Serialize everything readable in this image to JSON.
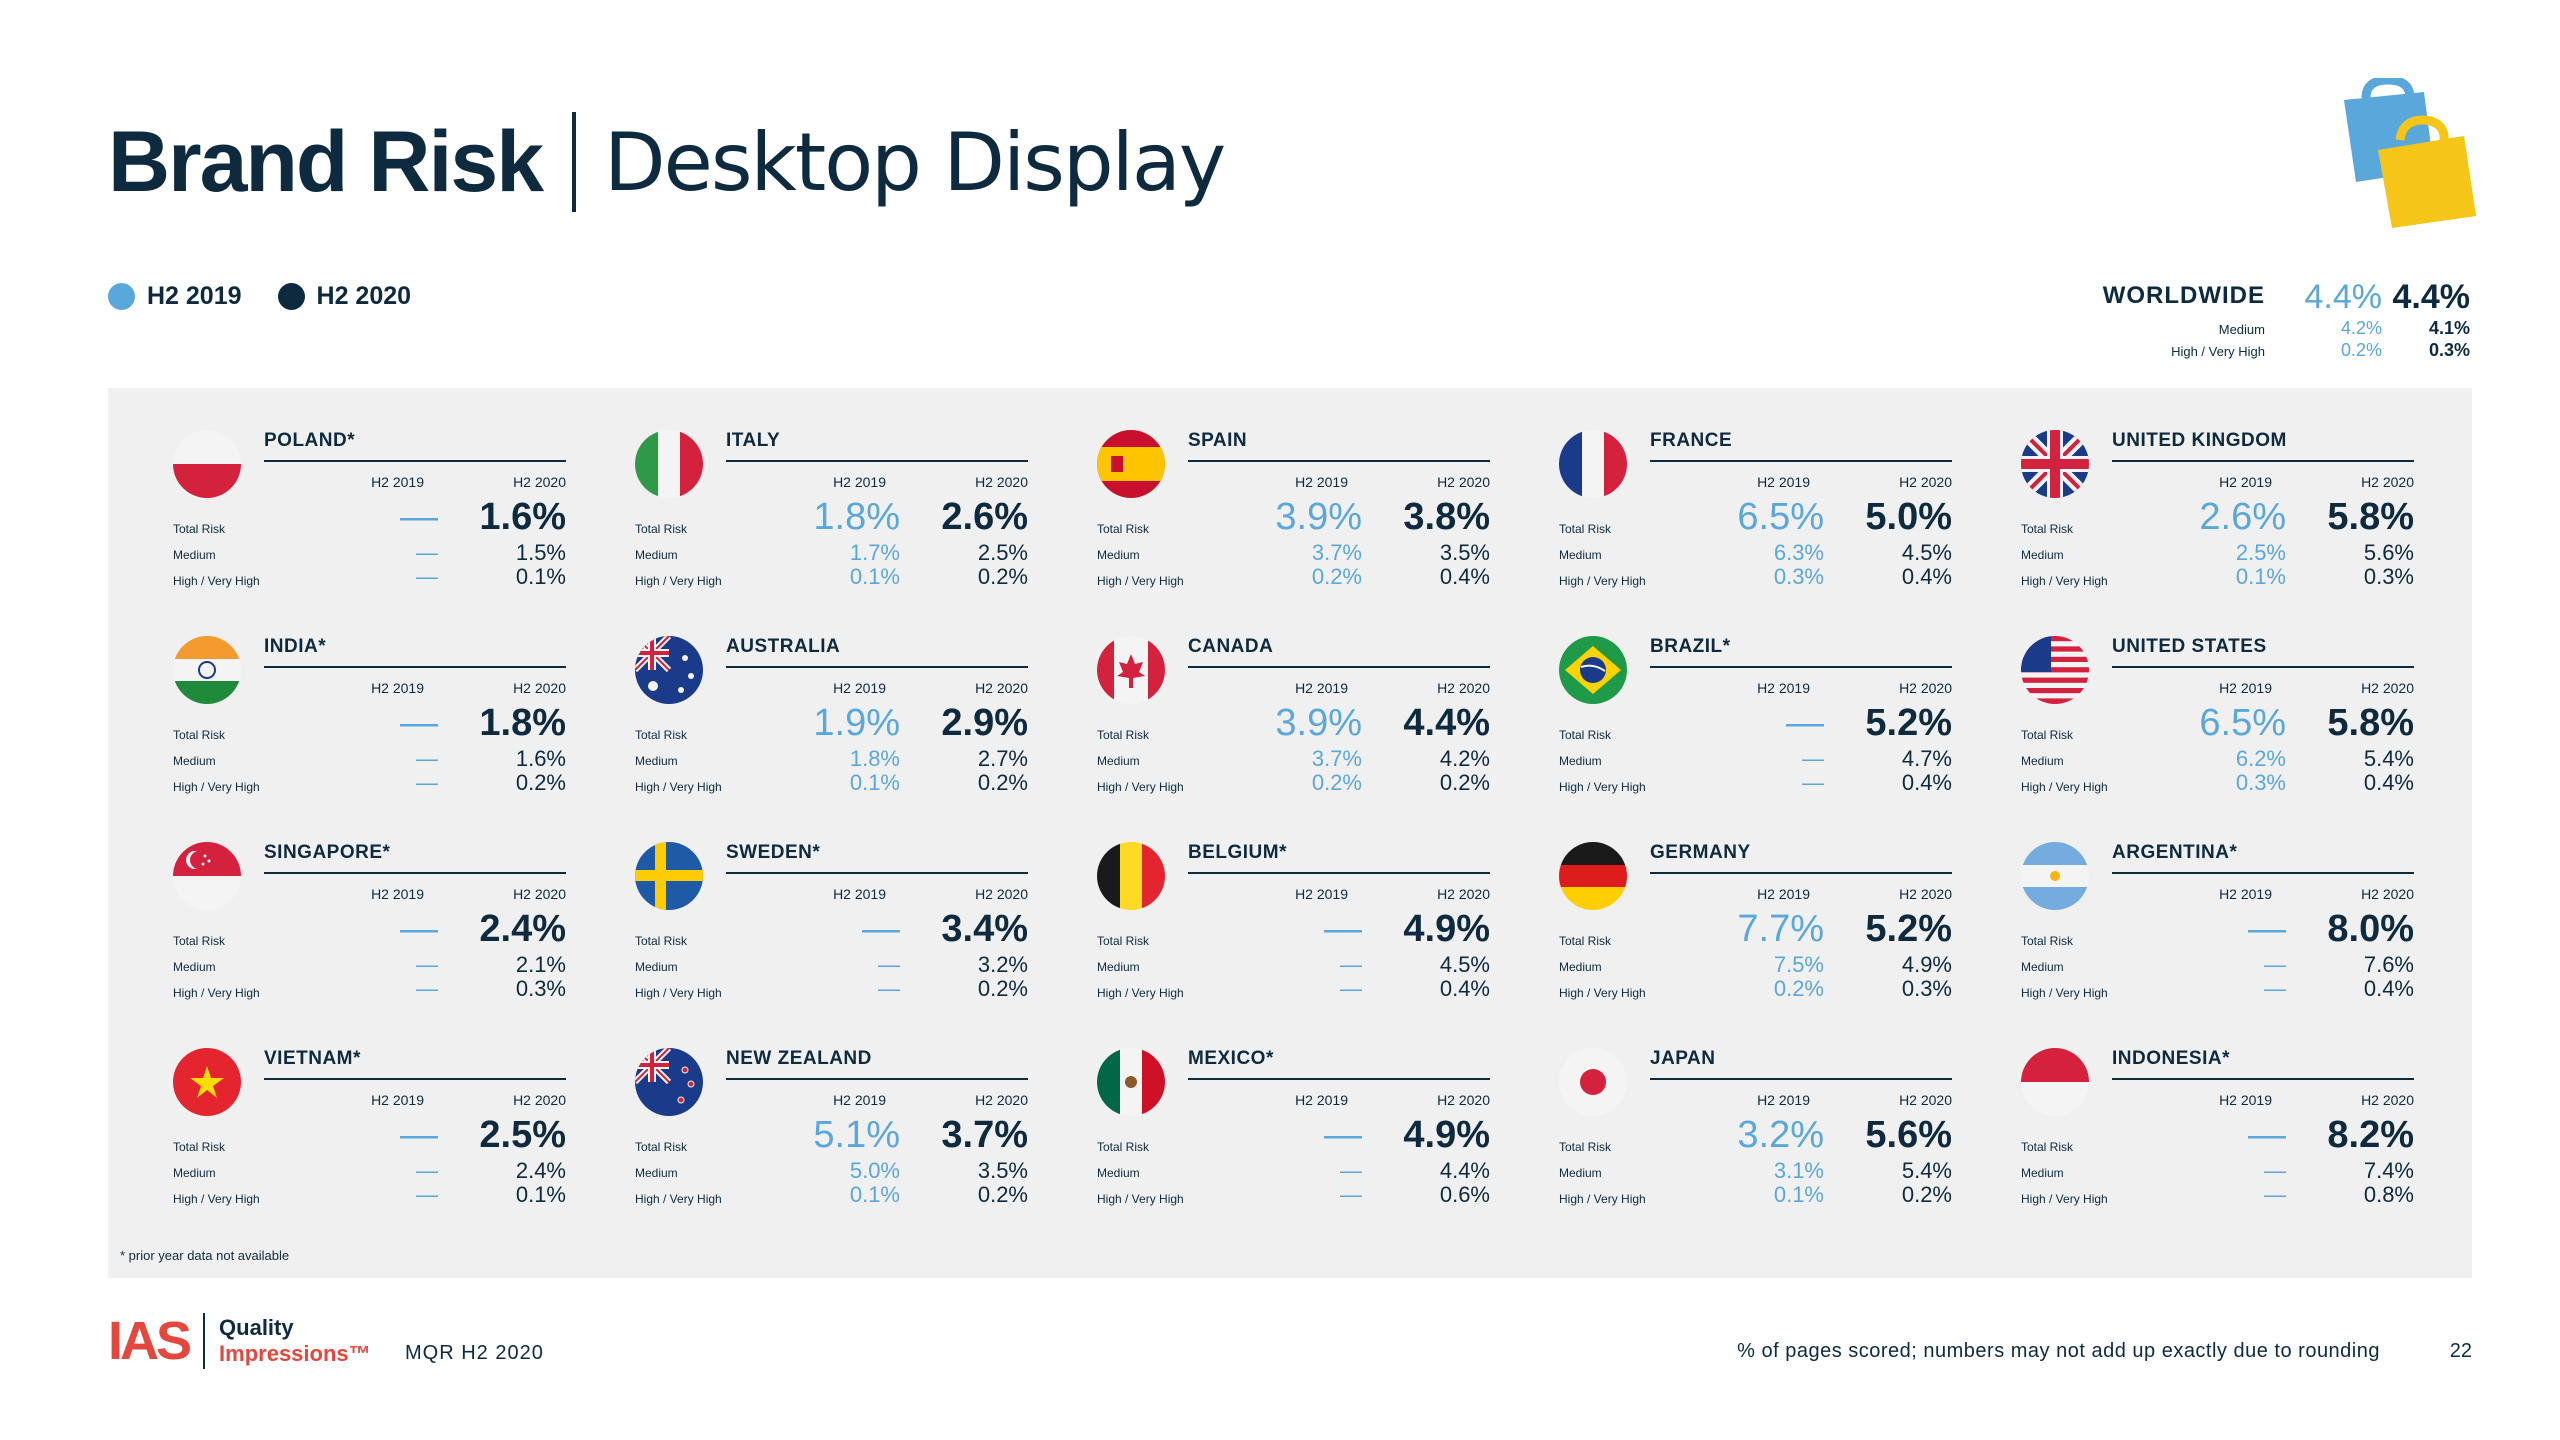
{
  "title": {
    "bold": "Brand Risk",
    "light": "Desktop Display"
  },
  "legend": {
    "h2019": "H2 2019",
    "h2020": "H2 2020"
  },
  "colors": {
    "h2019": "#5aa7dc",
    "h2020": "#0d2a3f",
    "panel": "#f0f0f0",
    "brand_red": "#e5473d"
  },
  "worldwide": {
    "label": "WORLDWIDE",
    "total_2019": "4.4%",
    "total_2020": "4.4%",
    "medium_label": "Medium",
    "medium_2019": "4.2%",
    "medium_2020": "4.1%",
    "high_label": "High / Very High",
    "high_2019": "0.2%",
    "high_2020": "0.3%"
  },
  "row_labels": {
    "total": "Total Risk",
    "medium": "Medium",
    "high": "High / Very High"
  },
  "column_labels": {
    "y2019": "H2 2019",
    "y2020": "H2 2020"
  },
  "countries": [
    {
      "name": "POLAND*",
      "flag": "poland-flag",
      "total19": "—",
      "total20": "1.6%",
      "med19": "—",
      "med20": "1.5%",
      "high19": "—",
      "high20": "0.1%"
    },
    {
      "name": "ITALY",
      "flag": "italy-flag",
      "total19": "1.8%",
      "total20": "2.6%",
      "med19": "1.7%",
      "med20": "2.5%",
      "high19": "0.1%",
      "high20": "0.2%"
    },
    {
      "name": "SPAIN",
      "flag": "spain-flag",
      "total19": "3.9%",
      "total20": "3.8%",
      "med19": "3.7%",
      "med20": "3.5%",
      "high19": "0.2%",
      "high20": "0.4%"
    },
    {
      "name": "FRANCE",
      "flag": "france-flag",
      "total19": "6.5%",
      "total20": "5.0%",
      "med19": "6.3%",
      "med20": "4.5%",
      "high19": "0.3%",
      "high20": "0.4%"
    },
    {
      "name": "UNITED KINGDOM",
      "flag": "uk-flag",
      "total19": "2.6%",
      "total20": "5.8%",
      "med19": "2.5%",
      "med20": "5.6%",
      "high19": "0.1%",
      "high20": "0.3%"
    },
    {
      "name": "INDIA*",
      "flag": "india-flag",
      "total19": "—",
      "total20": "1.8%",
      "med19": "—",
      "med20": "1.6%",
      "high19": "—",
      "high20": "0.2%"
    },
    {
      "name": "AUSTRALIA",
      "flag": "australia-flag",
      "total19": "1.9%",
      "total20": "2.9%",
      "med19": "1.8%",
      "med20": "2.7%",
      "high19": "0.1%",
      "high20": "0.2%"
    },
    {
      "name": "CANADA",
      "flag": "canada-flag",
      "total19": "3.9%",
      "total20": "4.4%",
      "med19": "3.7%",
      "med20": "4.2%",
      "high19": "0.2%",
      "high20": "0.2%"
    },
    {
      "name": "BRAZIL*",
      "flag": "brazil-flag",
      "total19": "—",
      "total20": "5.2%",
      "med19": "—",
      "med20": "4.7%",
      "high19": "—",
      "high20": "0.4%"
    },
    {
      "name": "UNITED STATES",
      "flag": "usa-flag",
      "total19": "6.5%",
      "total20": "5.8%",
      "med19": "6.2%",
      "med20": "5.4%",
      "high19": "0.3%",
      "high20": "0.4%"
    },
    {
      "name": "SINGAPORE*",
      "flag": "singapore-flag",
      "total19": "—",
      "total20": "2.4%",
      "med19": "—",
      "med20": "2.1%",
      "high19": "—",
      "high20": "0.3%"
    },
    {
      "name": "SWEDEN*",
      "flag": "sweden-flag",
      "total19": "—",
      "total20": "3.4%",
      "med19": "—",
      "med20": "3.2%",
      "high19": "—",
      "high20": "0.2%"
    },
    {
      "name": "BELGIUM*",
      "flag": "belgium-flag",
      "total19": "—",
      "total20": "4.9%",
      "med19": "—",
      "med20": "4.5%",
      "high19": "—",
      "high20": "0.4%"
    },
    {
      "name": "GERMANY",
      "flag": "germany-flag",
      "total19": "7.7%",
      "total20": "5.2%",
      "med19": "7.5%",
      "med20": "4.9%",
      "high19": "0.2%",
      "high20": "0.3%"
    },
    {
      "name": "ARGENTINA*",
      "flag": "argentina-flag",
      "total19": "—",
      "total20": "8.0%",
      "med19": "—",
      "med20": "7.6%",
      "high19": "—",
      "high20": "0.4%"
    },
    {
      "name": "VIETNAM*",
      "flag": "vietnam-flag",
      "total19": "—",
      "total20": "2.5%",
      "med19": "—",
      "med20": "2.4%",
      "high19": "—",
      "high20": "0.1%"
    },
    {
      "name": "NEW ZEALAND",
      "flag": "new-zealand-flag",
      "total19": "5.1%",
      "total20": "3.7%",
      "med19": "5.0%",
      "med20": "3.5%",
      "high19": "0.1%",
      "high20": "0.2%"
    },
    {
      "name": "MEXICO*",
      "flag": "mexico-flag",
      "total19": "—",
      "total20": "4.9%",
      "med19": "—",
      "med20": "4.4%",
      "high19": "—",
      "high20": "0.6%"
    },
    {
      "name": "JAPAN",
      "flag": "japan-flag",
      "total19": "3.2%",
      "total20": "5.6%",
      "med19": "3.1%",
      "med20": "5.4%",
      "high19": "0.1%",
      "high20": "0.2%"
    },
    {
      "name": "INDONESIA*",
      "flag": "indonesia-flag",
      "total19": "—",
      "total20": "8.2%",
      "med19": "—",
      "med20": "7.4%",
      "high19": "—",
      "high20": "0.8%"
    }
  ],
  "footnote": "* prior year data not available",
  "footer": {
    "logo_ias": "IAS",
    "logo_line1": "Quality",
    "logo_line2": "Impressions™",
    "report": "MQR H2 2020",
    "note": "% of pages scored; numbers may not add up exactly due to rounding",
    "page": "22"
  }
}
